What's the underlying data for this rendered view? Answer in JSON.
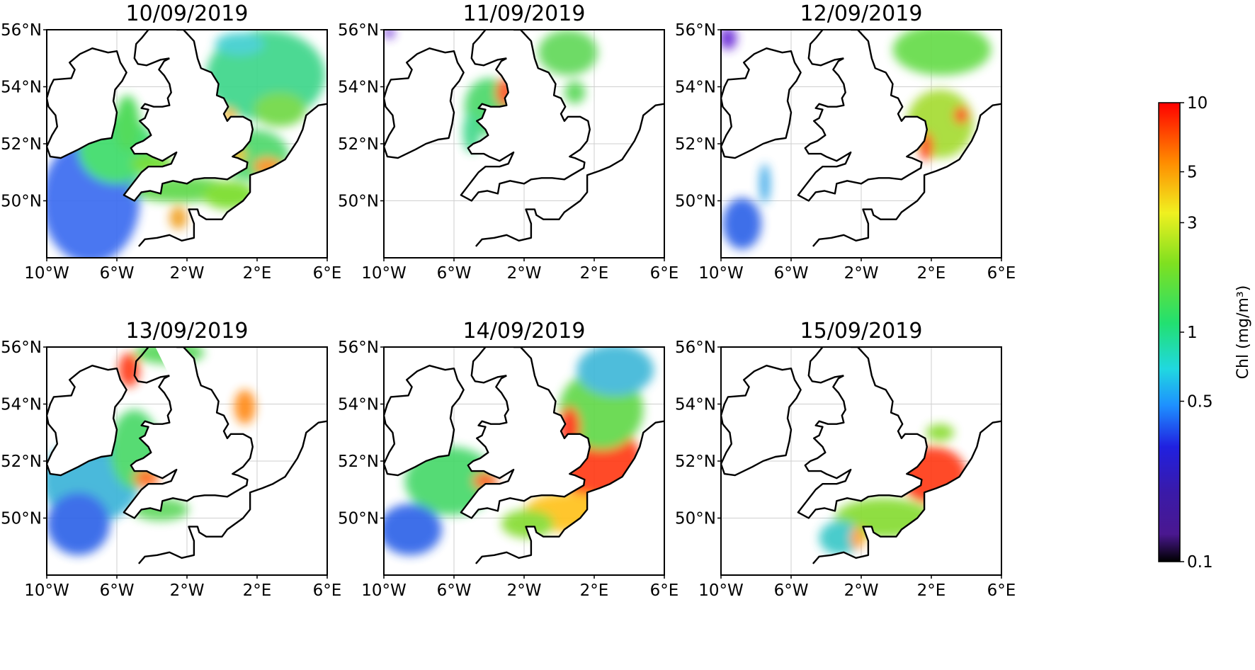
{
  "panels": [
    {
      "title": "10/09/2019",
      "blooms": [
        {
          "lon": -7.5,
          "lat": 50.0,
          "rlon": 2.8,
          "rlat": 2.2,
          "color": "#3a6cf0"
        },
        {
          "lon": -6.0,
          "lat": 51.8,
          "rlon": 2.2,
          "rlat": 1.2,
          "color": "#3ddc6a"
        },
        {
          "lon": -5.4,
          "lat": 52.7,
          "rlon": 0.7,
          "rlat": 1.0,
          "color": "#44d84f"
        },
        {
          "lon": -4.0,
          "lat": 51.3,
          "rlon": 1.2,
          "rlat": 0.35,
          "color": "#6cdc2a"
        },
        {
          "lon": -2.3,
          "lat": 50.4,
          "rlon": 3.0,
          "rlat": 0.45,
          "color": "#5ed84a"
        },
        {
          "lon": 0.4,
          "lat": 50.2,
          "rlon": 1.5,
          "rlat": 0.5,
          "color": "#79dd2a"
        },
        {
          "lon": -2.5,
          "lat": 49.4,
          "rlon": 0.5,
          "rlat": 0.4,
          "color": "#f0a020"
        },
        {
          "lon": 1.8,
          "lat": 51.6,
          "rlon": 2.0,
          "rlat": 0.9,
          "color": "#4fd86c"
        },
        {
          "lon": 0.8,
          "lat": 51.6,
          "rlon": 0.6,
          "rlat": 0.25,
          "color": "#f2c01f"
        },
        {
          "lon": 2.6,
          "lat": 51.2,
          "rlon": 0.8,
          "rlat": 0.3,
          "color": "#ff8c18"
        },
        {
          "lon": 2.5,
          "lat": 54.4,
          "rlon": 3.4,
          "rlat": 1.6,
          "color": "#3ed68a"
        },
        {
          "lon": 3.3,
          "lat": 53.2,
          "rlon": 1.5,
          "rlat": 0.6,
          "color": "#6fd844"
        },
        {
          "lon": 1.0,
          "lat": 55.5,
          "rlon": 1.4,
          "rlat": 0.4,
          "color": "#3fcfcf"
        },
        {
          "lon": 0.4,
          "lat": 53.0,
          "rlon": 0.4,
          "rlat": 0.25,
          "color": "#f7b324"
        }
      ]
    },
    {
      "title": "11/09/2019",
      "blooms": [
        {
          "lon": -4.0,
          "lat": 53.3,
          "rlon": 1.4,
          "rlat": 1.0,
          "color": "#4cd86a"
        },
        {
          "lon": -3.1,
          "lat": 53.8,
          "rlon": 0.5,
          "rlat": 0.5,
          "color": "#ff4a1a"
        },
        {
          "lon": -5.0,
          "lat": 52.4,
          "rlon": 0.5,
          "rlat": 0.7,
          "color": "#3fd88a"
        },
        {
          "lon": 0.5,
          "lat": 55.2,
          "rlon": 1.7,
          "rlat": 0.8,
          "color": "#62d85a"
        },
        {
          "lon": 0.9,
          "lat": 53.8,
          "rlon": 0.6,
          "rlat": 0.4,
          "color": "#5cd85a"
        },
        {
          "lon": -9.7,
          "lat": 55.9,
          "rlon": 0.3,
          "rlat": 0.2,
          "color": "#6a2bd8"
        }
      ]
    },
    {
      "title": "12/09/2019",
      "blooms": [
        {
          "lon": 2.5,
          "lat": 52.7,
          "rlon": 1.9,
          "rlat": 1.2,
          "color": "#a5dc30"
        },
        {
          "lon": 1.7,
          "lat": 51.9,
          "rlon": 0.4,
          "rlat": 0.5,
          "color": "#ff3a1a"
        },
        {
          "lon": 3.7,
          "lat": 53.0,
          "rlon": 0.4,
          "rlat": 0.3,
          "color": "#ff2a1a"
        },
        {
          "lon": 2.6,
          "lat": 55.3,
          "rlon": 2.8,
          "rlat": 0.9,
          "color": "#66dc4a"
        },
        {
          "lon": -8.8,
          "lat": 49.2,
          "rlon": 1.1,
          "rlat": 0.9,
          "color": "#2f63e8"
        },
        {
          "lon": -9.6,
          "lat": 55.7,
          "rlon": 0.5,
          "rlat": 0.4,
          "color": "#6a2bd8"
        },
        {
          "lon": -7.5,
          "lat": 50.6,
          "rlon": 0.3,
          "rlat": 0.7,
          "color": "#3aa8e8"
        }
      ]
    },
    {
      "title": "13/09/2019",
      "blooms": [
        {
          "lon": -7.5,
          "lat": 51.3,
          "rlon": 2.8,
          "rlat": 1.5,
          "color": "#3ab4d8"
        },
        {
          "lon": -8.2,
          "lat": 49.8,
          "rlon": 1.8,
          "rlat": 1.1,
          "color": "#2f63e8"
        },
        {
          "lon": -5.0,
          "lat": 52.4,
          "rlon": 1.4,
          "rlat": 1.4,
          "color": "#48d868"
        },
        {
          "lon": -4.3,
          "lat": 51.4,
          "rlon": 0.7,
          "rlat": 0.35,
          "color": "#ff6a1a"
        },
        {
          "lon": -3.5,
          "lat": 50.3,
          "rlon": 1.6,
          "rlat": 0.4,
          "color": "#62d860"
        },
        {
          "lon": 1.3,
          "lat": 53.9,
          "rlon": 0.6,
          "rlat": 0.6,
          "color": "#ff8a18"
        },
        {
          "lon": -5.3,
          "lat": 55.2,
          "rlon": 0.6,
          "rlat": 0.6,
          "color": "#ff3a18"
        },
        {
          "lon": -3.0,
          "lat": 55.8,
          "rlon": 2.0,
          "rlat": 0.4,
          "color": "#58d85a"
        }
      ]
    },
    {
      "title": "14/09/2019",
      "blooms": [
        {
          "lon": 2.5,
          "lat": 51.8,
          "rlon": 2.2,
          "rlat": 1.6,
          "color": "#ff3a18"
        },
        {
          "lon": 0.5,
          "lat": 50.2,
          "rlon": 2.5,
          "rlat": 0.7,
          "color": "#ffc21f"
        },
        {
          "lon": 2.4,
          "lat": 53.8,
          "rlon": 2.4,
          "rlat": 1.4,
          "color": "#62d84a"
        },
        {
          "lon": 3.2,
          "lat": 55.2,
          "rlon": 2.2,
          "rlat": 0.9,
          "color": "#3fb8d8"
        },
        {
          "lon": 0.6,
          "lat": 53.2,
          "rlon": 0.6,
          "rlat": 0.7,
          "color": "#ff3018"
        },
        {
          "lon": -6.2,
          "lat": 51.3,
          "rlon": 2.6,
          "rlat": 1.2,
          "color": "#46d86a"
        },
        {
          "lon": -4.2,
          "lat": 51.3,
          "rlon": 0.7,
          "rlat": 0.3,
          "color": "#ff5a1a"
        },
        {
          "lon": -8.5,
          "lat": 49.6,
          "rlon": 1.8,
          "rlat": 0.9,
          "color": "#2f63e8"
        },
        {
          "lon": -1.8,
          "lat": 49.8,
          "rlon": 1.5,
          "rlat": 0.5,
          "color": "#86dc30"
        }
      ]
    },
    {
      "title": "15/09/2019",
      "blooms": [
        {
          "lon": 2.1,
          "lat": 51.5,
          "rlon": 1.9,
          "rlat": 1.0,
          "color": "#ff3a18"
        },
        {
          "lon": -0.7,
          "lat": 50.0,
          "rlon": 2.8,
          "rlat": 0.7,
          "color": "#86dc30"
        },
        {
          "lon": -3.2,
          "lat": 49.3,
          "rlon": 1.2,
          "rlat": 0.6,
          "color": "#3ac8c8"
        },
        {
          "lon": -2.2,
          "lat": 49.3,
          "rlon": 0.4,
          "rlat": 0.4,
          "color": "#ffa020"
        },
        {
          "lon": 2.5,
          "lat": 53.0,
          "rlon": 0.8,
          "rlat": 0.3,
          "color": "#8adc30"
        }
      ]
    }
  ],
  "axes": {
    "lon_ticks": [
      "10°W",
      "6°W",
      "2°W",
      "2°E",
      "6°E"
    ],
    "lat_ticks": [
      "56°N",
      "54°N",
      "52°N",
      "50°N"
    ]
  },
  "colorbar": {
    "label": "Chl (mg/m³)",
    "ticks": [
      "10",
      "5",
      "3",
      "1",
      "0.5",
      "0.1"
    ],
    "scale": "log",
    "range": [
      0.1,
      10
    ],
    "colors": [
      "#000000",
      "#5a1ea0",
      "#2020e0",
      "#1e90ff",
      "#20e0e0",
      "#22e070",
      "#7fe020",
      "#f0f020",
      "#ff8c00",
      "#ff0000"
    ]
  }
}
